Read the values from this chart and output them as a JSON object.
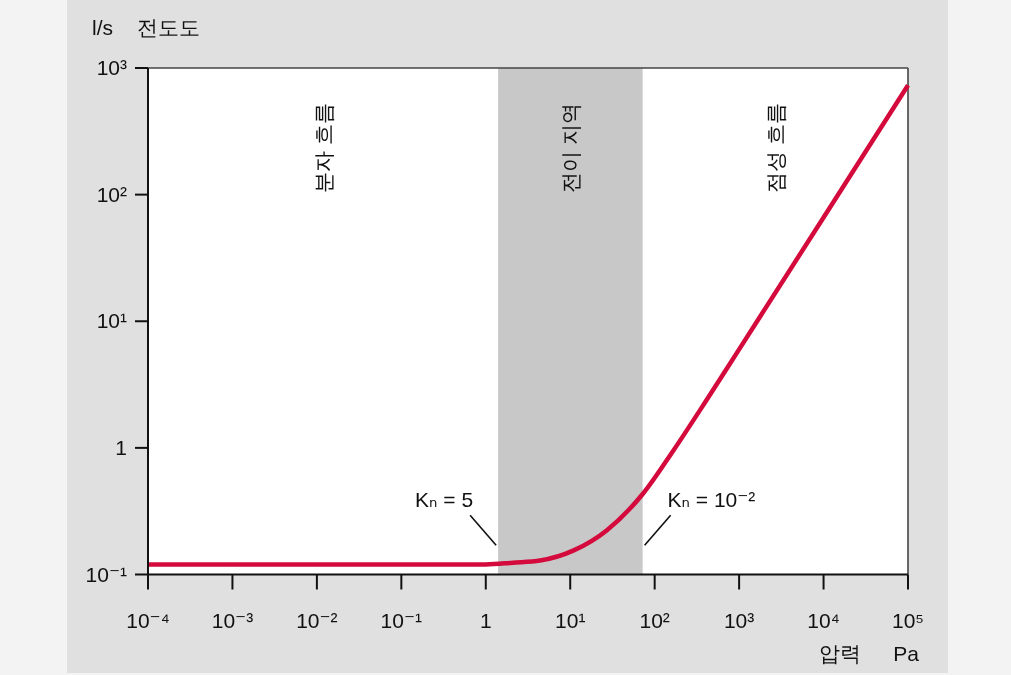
{
  "chart_data": {
    "type": "line",
    "xlabel": "압력 Pa",
    "ylabel": "l/s 전도도",
    "log": "xy",
    "xlim": [
      0.0001,
      100000
    ],
    "ylim": [
      0.1,
      1000
    ],
    "xticks": [
      {
        "value": 0.0001,
        "label": "10⁻⁴"
      },
      {
        "value": 0.001,
        "label": "10⁻³"
      },
      {
        "value": 0.01,
        "label": "10⁻²"
      },
      {
        "value": 0.1,
        "label": "10⁻¹"
      },
      1,
      {
        "value": 10,
        "label": "10¹"
      },
      {
        "value": 100,
        "label": "10²"
      },
      {
        "value": 1000,
        "label": "10³"
      },
      {
        "value": 10000,
        "label": "10⁴"
      },
      {
        "value": 100000,
        "label": "10⁵"
      }
    ],
    "yticks": [
      {
        "value": 0.1,
        "label": "10⁻¹"
      },
      1,
      {
        "value": 10,
        "label": "10¹"
      },
      {
        "value": 100,
        "label": "10²"
      },
      {
        "value": 1000,
        "label": "10³"
      }
    ],
    "x": [
      0.0001,
      0.01,
      1,
      2.1,
      4.4,
      11,
      27,
      73,
      166,
      414,
      1000,
      10000,
      100000
    ],
    "series": [
      {
        "color": "#d50a3c",
        "values": [
          0.12,
          0.12,
          0.12,
          0.124,
          0.129,
          0.155,
          0.223,
          0.436,
          0.95,
          2.4,
          6,
          66,
          730
        ]
      }
    ],
    "bands": [
      {
        "axis": "x",
        "from": 1.4,
        "to": 72,
        "label": "전이 지역",
        "color": "#c8c8c8"
      }
    ],
    "annotations": [
      "분자 흐름",
      "점성 흐름",
      {
        "text": "Kₙ = 5",
        "x": 1.4,
        "y": 0.17
      },
      {
        "text": "Kₙ = 10⁻²",
        "x": 72,
        "y": 0.17
      }
    ]
  }
}
